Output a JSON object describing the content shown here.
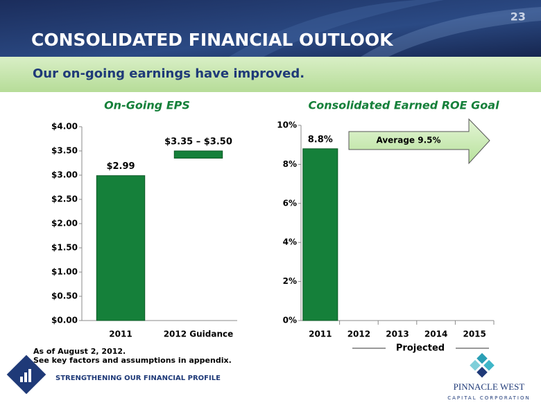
{
  "slide_number": "23",
  "title": "CONSOLIDATED FINANCIAL OUTLOOK",
  "subtitle": "Our on-going earnings have improved.",
  "chart_data": [
    {
      "type": "bar",
      "title": "On-Going EPS",
      "categories": [
        "2011",
        "2012 Guidance"
      ],
      "values": [
        2.99,
        null
      ],
      "ranges": [
        null,
        {
          "low": 3.35,
          "high": 3.5
        }
      ],
      "value_labels": [
        "$2.99",
        "$3.35 – $3.50"
      ],
      "color": "#15803a",
      "ylim": [
        0,
        4
      ],
      "yticks": [
        {
          "value": 0,
          "label": "$0.00"
        },
        {
          "value": 0.5,
          "label": "$0.50"
        },
        {
          "value": 1,
          "label": "$1.00"
        },
        {
          "value": 1.5,
          "label": "$1.50"
        },
        {
          "value": 2,
          "label": "$2.00"
        },
        {
          "value": 2.5,
          "label": "$2.50"
        },
        {
          "value": 3,
          "label": "$3.00"
        },
        {
          "value": 3.5,
          "label": "$3.50"
        },
        {
          "value": 4,
          "label": "$4.00"
        }
      ]
    },
    {
      "type": "bar",
      "title": "Consolidated Earned ROE Goal",
      "categories": [
        "2011",
        "2012",
        "2013",
        "2014",
        "2015"
      ],
      "values": [
        8.8,
        null,
        null,
        null,
        null
      ],
      "value_labels": [
        "8.8%",
        null,
        null,
        null,
        null
      ],
      "color": "#15803a",
      "ylim": [
        0,
        10
      ],
      "yticks": [
        {
          "value": 0,
          "label": "0%"
        },
        {
          "value": 2,
          "label": "2%"
        },
        {
          "value": 4,
          "label": "4%"
        },
        {
          "value": 6,
          "label": "6%"
        },
        {
          "value": 8,
          "label": "8%"
        },
        {
          "value": 10,
          "label": "10%"
        }
      ],
      "annotation": "Average 9.5%",
      "bracket_label": "Projected"
    }
  ],
  "footnotes": [
    "As of August 2, 2012.",
    "See key factors and assumptions in appendix."
  ],
  "footer": "STRENGTHENING OUR FINANCIAL PROFILE",
  "logo": {
    "name": "PINNACLE WEST",
    "tagline": "CAPITAL CORPORATION"
  }
}
